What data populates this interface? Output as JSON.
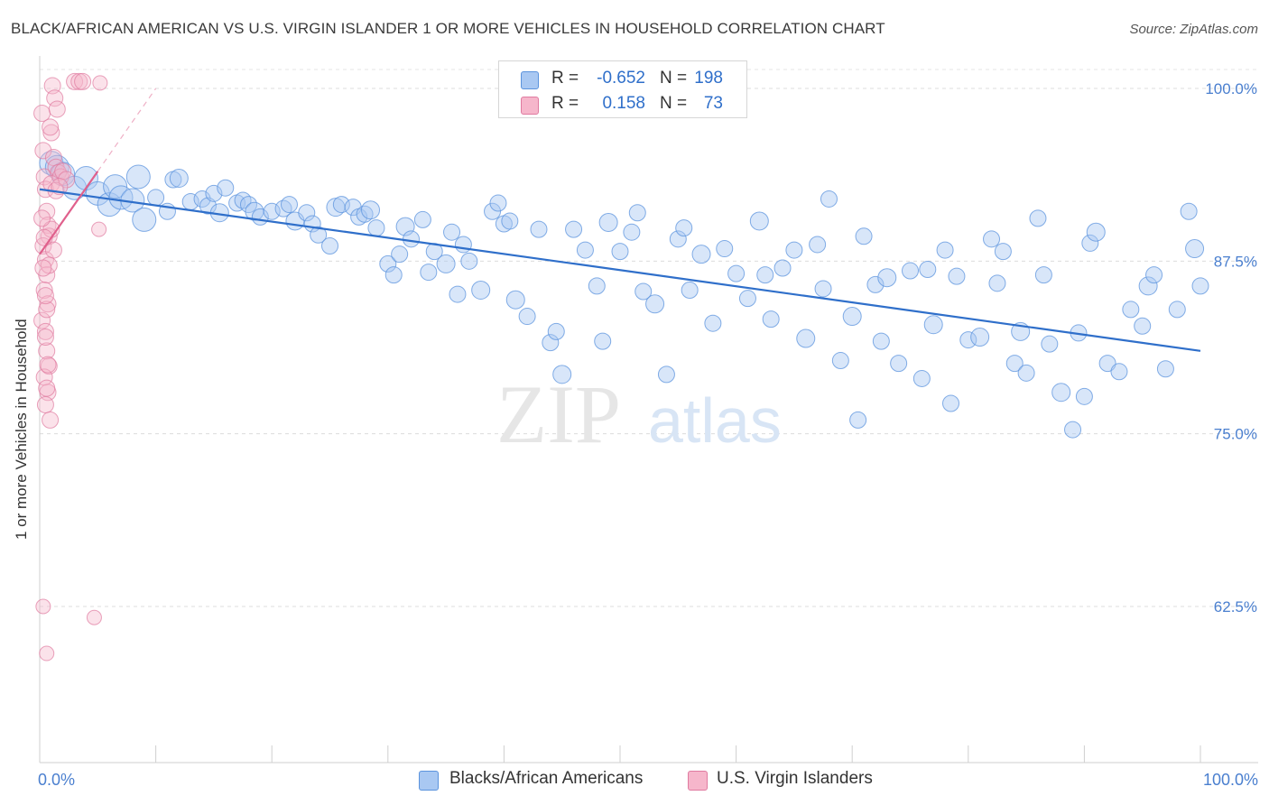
{
  "header": {
    "title": "BLACK/AFRICAN AMERICAN VS U.S. VIRGIN ISLANDER 1 OR MORE VEHICLES IN HOUSEHOLD CORRELATION CHART",
    "source": "Source: ZipAtlas.com"
  },
  "legend": {
    "rows": [
      {
        "r_label": "R =",
        "r_value": "-0.652",
        "n_label": "N =",
        "n_value": "198",
        "color": "#a9c8f2"
      },
      {
        "r_label": "R =",
        "r_value": "0.158",
        "n_label": "N =",
        "n_value": "73",
        "color": "#f6b6cb"
      }
    ]
  },
  "bottom_legend": {
    "items": [
      {
        "label": "Blacks/African Americans",
        "color": "#a9c8f2"
      },
      {
        "label": "U.S. Virgin Islanders",
        "color": "#f6b6cb"
      }
    ]
  },
  "watermark": {
    "zip": "ZIP",
    "atlas": "atlas"
  },
  "chart_data": {
    "type": "scatter",
    "title": "BLACK/AFRICAN AMERICAN VS U.S. VIRGIN ISLANDER 1 OR MORE VEHICLES IN HOUSEHOLD CORRELATION CHART",
    "xlabel": "",
    "ylabel": "1 or more Vehicles in Household",
    "xlim": [
      0,
      100
    ],
    "ylim": [
      50,
      102
    ],
    "x_tick_labels": [
      "0.0%",
      "100.0%"
    ],
    "y_tick_values": [
      62.5,
      75.0,
      87.5,
      100.0
    ],
    "y_tick_labels": [
      "62.5%",
      "75.0%",
      "87.5%",
      "100.0%"
    ],
    "grid": true,
    "legend_position": "top-center",
    "colors": {
      "blue_fill": "#a9c8f2",
      "blue_stroke": "#5b93dd",
      "blue_line": "#2f6fca",
      "pink_fill": "#f6b6cb",
      "pink_stroke": "#e07aa0",
      "pink_line": "#e0608c",
      "tick_text": "#4a7fcf"
    },
    "series": [
      {
        "name": "Blacks/African Americans",
        "r": -0.652,
        "n": 198,
        "trend": {
          "x": [
            0,
            100
          ],
          "y": [
            92.7,
            81.0
          ]
        },
        "points": [
          [
            1,
            94.6
          ],
          [
            1.5,
            94.3
          ],
          [
            2,
            93.8
          ],
          [
            3,
            92.8
          ],
          [
            4,
            93.5
          ],
          [
            5,
            92.4
          ],
          [
            6,
            91.6
          ],
          [
            6.5,
            92.9
          ],
          [
            7,
            92.1
          ],
          [
            8,
            91.9
          ],
          [
            8.5,
            93.6
          ],
          [
            9,
            90.5
          ],
          [
            10,
            92.1
          ],
          [
            11,
            91.1
          ],
          [
            11.5,
            93.4
          ],
          [
            12,
            93.5
          ],
          [
            13,
            91.8
          ],
          [
            14,
            92.0
          ],
          [
            14.5,
            91.5
          ],
          [
            15,
            92.4
          ],
          [
            15.5,
            91.0
          ],
          [
            16,
            92.8
          ],
          [
            17,
            91.7
          ],
          [
            17.5,
            91.9
          ],
          [
            18,
            91.6
          ],
          [
            18.5,
            91.1
          ],
          [
            19,
            90.7
          ],
          [
            20,
            91.1
          ],
          [
            21,
            91.3
          ],
          [
            21.5,
            91.6
          ],
          [
            22,
            90.4
          ],
          [
            23,
            91.0
          ],
          [
            23.5,
            90.2
          ],
          [
            24,
            89.4
          ],
          [
            25,
            88.6
          ],
          [
            25.5,
            91.4
          ],
          [
            26,
            91.6
          ],
          [
            27,
            91.4
          ],
          [
            27.5,
            90.7
          ],
          [
            28,
            90.9
          ],
          [
            28.5,
            91.2
          ],
          [
            29,
            89.9
          ],
          [
            30,
            87.3
          ],
          [
            30.5,
            86.5
          ],
          [
            31,
            88.0
          ],
          [
            31.5,
            90.0
          ],
          [
            32,
            89.1
          ],
          [
            33,
            90.5
          ],
          [
            33.5,
            86.7
          ],
          [
            34,
            88.2
          ],
          [
            35,
            87.3
          ],
          [
            35.5,
            89.6
          ],
          [
            36,
            85.1
          ],
          [
            36.5,
            88.7
          ],
          [
            37,
            87.5
          ],
          [
            38,
            85.4
          ],
          [
            39,
            91.1
          ],
          [
            39.5,
            91.7
          ],
          [
            40,
            90.2
          ],
          [
            40.5,
            90.4
          ],
          [
            41,
            84.7
          ],
          [
            42,
            83.5
          ],
          [
            43,
            89.8
          ],
          [
            44,
            81.6
          ],
          [
            44.5,
            82.4
          ],
          [
            45,
            79.3
          ],
          [
            46,
            89.8
          ],
          [
            47,
            88.3
          ],
          [
            48,
            85.7
          ],
          [
            48.5,
            81.7
          ],
          [
            49,
            90.3
          ],
          [
            50,
            88.2
          ],
          [
            51,
            89.6
          ],
          [
            51.5,
            91.0
          ],
          [
            52,
            85.3
          ],
          [
            53,
            84.4
          ],
          [
            54,
            79.3
          ],
          [
            55,
            89.1
          ],
          [
            55.5,
            89.9
          ],
          [
            56,
            85.4
          ],
          [
            57,
            88.0
          ],
          [
            58,
            83.0
          ],
          [
            59,
            88.4
          ],
          [
            60,
            86.6
          ],
          [
            61,
            84.8
          ],
          [
            62,
            90.4
          ],
          [
            62.5,
            86.5
          ],
          [
            63,
            83.3
          ],
          [
            64,
            87.0
          ],
          [
            65,
            88.3
          ],
          [
            66,
            81.9
          ],
          [
            67,
            88.7
          ],
          [
            67.5,
            85.5
          ],
          [
            68,
            92.0
          ],
          [
            69,
            80.3
          ],
          [
            70,
            83.5
          ],
          [
            70.5,
            76.0
          ],
          [
            71,
            89.3
          ],
          [
            72,
            85.8
          ],
          [
            72.5,
            81.7
          ],
          [
            73,
            86.3
          ],
          [
            74,
            80.1
          ],
          [
            75,
            86.8
          ],
          [
            76,
            79.0
          ],
          [
            76.5,
            86.9
          ],
          [
            77,
            82.9
          ],
          [
            78,
            88.3
          ],
          [
            78.5,
            77.2
          ],
          [
            79,
            86.4
          ],
          [
            80,
            81.8
          ],
          [
            81,
            82.0
          ],
          [
            82,
            89.1
          ],
          [
            82.5,
            85.9
          ],
          [
            83,
            88.2
          ],
          [
            84,
            80.1
          ],
          [
            84.5,
            82.4
          ],
          [
            85,
            79.4
          ],
          [
            86,
            90.6
          ],
          [
            86.5,
            86.5
          ],
          [
            87,
            81.5
          ],
          [
            88,
            78.0
          ],
          [
            89,
            75.3
          ],
          [
            89.5,
            82.3
          ],
          [
            90,
            77.7
          ],
          [
            90.5,
            88.8
          ],
          [
            91,
            89.6
          ],
          [
            92,
            80.1
          ],
          [
            93,
            79.5
          ],
          [
            94,
            84.0
          ],
          [
            95,
            82.8
          ],
          [
            95.5,
            85.7
          ],
          [
            96,
            86.5
          ],
          [
            97,
            79.7
          ],
          [
            98,
            84.0
          ],
          [
            99,
            91.1
          ],
          [
            99.5,
            88.4
          ],
          [
            100,
            85.7
          ]
        ]
      },
      {
        "name": "U.S. Virgin Islanders",
        "r": 0.158,
        "n": 73,
        "trend": {
          "x": [
            0,
            5
          ],
          "y": [
            88.0,
            94.0
          ]
        },
        "points": [
          [
            0.2,
            98.2
          ],
          [
            0.3,
            95.5
          ],
          [
            0.4,
            93.6
          ],
          [
            0.5,
            92.7
          ],
          [
            0.6,
            91.1
          ],
          [
            0.7,
            90.1
          ],
          [
            0.8,
            89.3
          ],
          [
            0.3,
            88.6
          ],
          [
            0.5,
            87.6
          ],
          [
            0.6,
            86.5
          ],
          [
            0.4,
            85.4
          ],
          [
            0.7,
            84.4
          ],
          [
            0.2,
            83.2
          ],
          [
            0.5,
            82.4
          ],
          [
            0.6,
            81.0
          ],
          [
            0.8,
            79.9
          ],
          [
            0.4,
            79.1
          ],
          [
            0.7,
            78.0
          ],
          [
            0.5,
            77.1
          ],
          [
            0.9,
            76.0
          ],
          [
            0.3,
            62.5
          ],
          [
            0.6,
            59.1
          ],
          [
            1.0,
            96.8
          ],
          [
            1.2,
            95.0
          ],
          [
            1.4,
            94.3
          ],
          [
            1.6,
            93.9
          ],
          [
            1.8,
            93.6
          ],
          [
            2.0,
            94.0
          ],
          [
            2.3,
            93.4
          ],
          [
            1.1,
            100.2
          ],
          [
            1.3,
            99.3
          ],
          [
            1.5,
            98.5
          ],
          [
            0.9,
            97.2
          ],
          [
            1.0,
            89.8
          ],
          [
            1.2,
            88.3
          ],
          [
            0.8,
            87.2
          ],
          [
            0.6,
            84.0
          ],
          [
            0.5,
            82.0
          ],
          [
            3.0,
            100.5
          ],
          [
            3.4,
            100.5
          ],
          [
            3.7,
            100.5
          ],
          [
            5.2,
            100.4
          ],
          [
            5.1,
            89.8
          ],
          [
            4.7,
            61.7
          ],
          [
            0.2,
            90.6
          ],
          [
            0.4,
            89.2
          ],
          [
            0.3,
            87.0
          ],
          [
            0.5,
            85.0
          ],
          [
            0.7,
            80.0
          ],
          [
            0.6,
            78.3
          ],
          [
            1.0,
            93.1
          ],
          [
            1.4,
            92.6
          ],
          [
            1.7,
            92.9
          ]
        ]
      }
    ]
  }
}
